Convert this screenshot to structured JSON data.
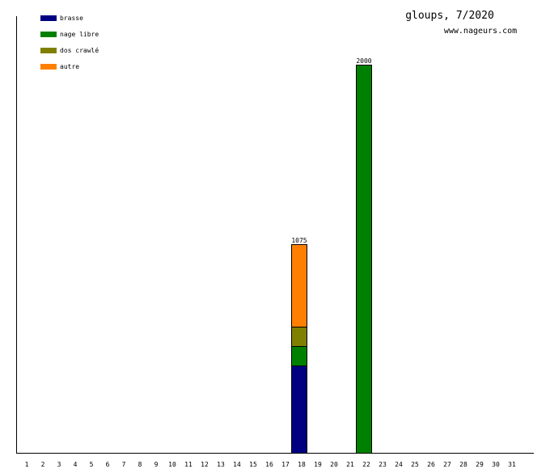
{
  "chart_data": {
    "type": "bar",
    "stacked": true,
    "title": "gloups, 7/2020",
    "subtitle": "www.nageurs.com",
    "xlabel": "",
    "ylabel": "",
    "ylim": [
      0,
      2000
    ],
    "legend_position": "top-left",
    "grid": false,
    "categories": [
      "1",
      "2",
      "3",
      "4",
      "5",
      "6",
      "7",
      "8",
      "9",
      "10",
      "11",
      "12",
      "13",
      "14",
      "15",
      "16",
      "17",
      "18",
      "19",
      "20",
      "21",
      "22",
      "23",
      "24",
      "25",
      "26",
      "27",
      "28",
      "29",
      "30",
      "31"
    ],
    "series": [
      {
        "name": "brasse",
        "color": "#000080",
        "values": [
          0,
          0,
          0,
          0,
          0,
          0,
          0,
          0,
          0,
          0,
          0,
          0,
          0,
          0,
          0,
          0,
          0,
          450,
          0,
          0,
          0,
          0,
          0,
          0,
          0,
          0,
          0,
          0,
          0,
          0,
          0
        ]
      },
      {
        "name": "nage libre",
        "color": "#008000",
        "values": [
          0,
          0,
          0,
          0,
          0,
          0,
          0,
          0,
          0,
          0,
          0,
          0,
          0,
          0,
          0,
          0,
          0,
          100,
          0,
          0,
          0,
          2000,
          0,
          0,
          0,
          0,
          0,
          0,
          0,
          0,
          0
        ]
      },
      {
        "name": "dos crawlé",
        "color": "#808000",
        "values": [
          0,
          0,
          0,
          0,
          0,
          0,
          0,
          0,
          0,
          0,
          0,
          0,
          0,
          0,
          0,
          0,
          0,
          100,
          0,
          0,
          0,
          0,
          0,
          0,
          0,
          0,
          0,
          0,
          0,
          0,
          0
        ]
      },
      {
        "name": "autre",
        "color": "#ff8000",
        "values": [
          0,
          0,
          0,
          0,
          0,
          0,
          0,
          0,
          0,
          0,
          0,
          0,
          0,
          0,
          0,
          0,
          0,
          425,
          0,
          0,
          0,
          0,
          0,
          0,
          0,
          0,
          0,
          0,
          0,
          0,
          0
        ]
      }
    ],
    "totals": [
      {
        "category": "18",
        "label": "1075"
      },
      {
        "category": "22",
        "label": "2000"
      }
    ]
  }
}
